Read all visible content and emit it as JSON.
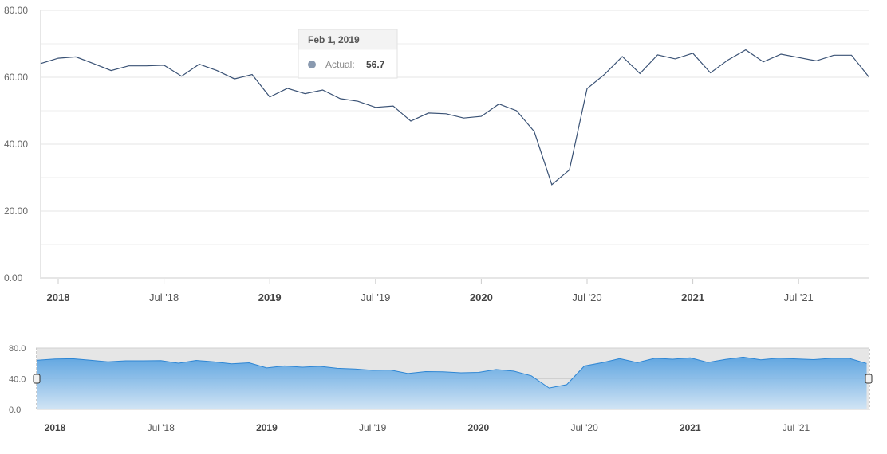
{
  "chart_data": {
    "type": "line",
    "y_ticks": [
      "0.00",
      "20.00",
      "40.00",
      "60.00",
      "80.00"
    ],
    "ylim": [
      0,
      80
    ],
    "x_ticks": [
      {
        "label": "2018",
        "month": 0,
        "bold": true
      },
      {
        "label": "Jul '18",
        "month": 6,
        "bold": false
      },
      {
        "label": "2019",
        "month": 12,
        "bold": true
      },
      {
        "label": "Jul '19",
        "month": 18,
        "bold": false
      },
      {
        "label": "2020",
        "month": 24,
        "bold": true
      },
      {
        "label": "Jul '20",
        "month": 30,
        "bold": false
      },
      {
        "label": "2021",
        "month": 36,
        "bold": true
      },
      {
        "label": "Jul '21",
        "month": 42,
        "bold": false
      }
    ],
    "x_start": "2018-01-01",
    "x_end": "2021-11-01",
    "series": [
      {
        "name": "Actual",
        "color": "#3a5275",
        "x": [
          "2017-12-01",
          "2018-01-01",
          "2018-02-01",
          "2018-03-01",
          "2018-04-01",
          "2018-05-01",
          "2018-06-01",
          "2018-07-01",
          "2018-08-01",
          "2018-09-01",
          "2018-10-01",
          "2018-11-01",
          "2018-12-01",
          "2019-01-01",
          "2019-02-01",
          "2019-03-01",
          "2019-04-01",
          "2019-05-01",
          "2019-06-01",
          "2019-07-01",
          "2019-08-01",
          "2019-09-01",
          "2019-10-01",
          "2019-11-01",
          "2019-12-01",
          "2020-01-01",
          "2020-02-01",
          "2020-03-01",
          "2020-04-01",
          "2020-05-01",
          "2020-06-01",
          "2020-07-01",
          "2020-08-01",
          "2020-09-01",
          "2020-10-01",
          "2020-11-01",
          "2020-12-01",
          "2021-01-01",
          "2021-02-01",
          "2021-03-01",
          "2021-04-01",
          "2021-05-01",
          "2021-06-01",
          "2021-07-01",
          "2021-08-01",
          "2021-09-01",
          "2021-10-01",
          "2021-11-01"
        ],
        "values": [
          64.1,
          65.7,
          66.1,
          64.1,
          62.0,
          63.4,
          63.4,
          63.6,
          60.3,
          63.9,
          62.0,
          59.5,
          60.8,
          54.1,
          56.7,
          55.1,
          56.2,
          53.6,
          52.8,
          51.0,
          51.4,
          46.9,
          49.3,
          49.1,
          47.8,
          48.3,
          52.0,
          50.0,
          43.8,
          27.9,
          32.3,
          56.6,
          60.9,
          66.2,
          61.1,
          66.7,
          65.5,
          67.2,
          61.3,
          65.2,
          68.2,
          64.6,
          66.9,
          65.9,
          64.9,
          66.6,
          66.6,
          60.0
        ]
      }
    ],
    "tooltip": {
      "date": "Feb 1, 2019",
      "label": "Actual:",
      "value": "56.7"
    },
    "navigator": {
      "y_ticks": [
        "0.0",
        "40.0",
        "80.0"
      ],
      "series_color": "#2e86d4"
    }
  }
}
